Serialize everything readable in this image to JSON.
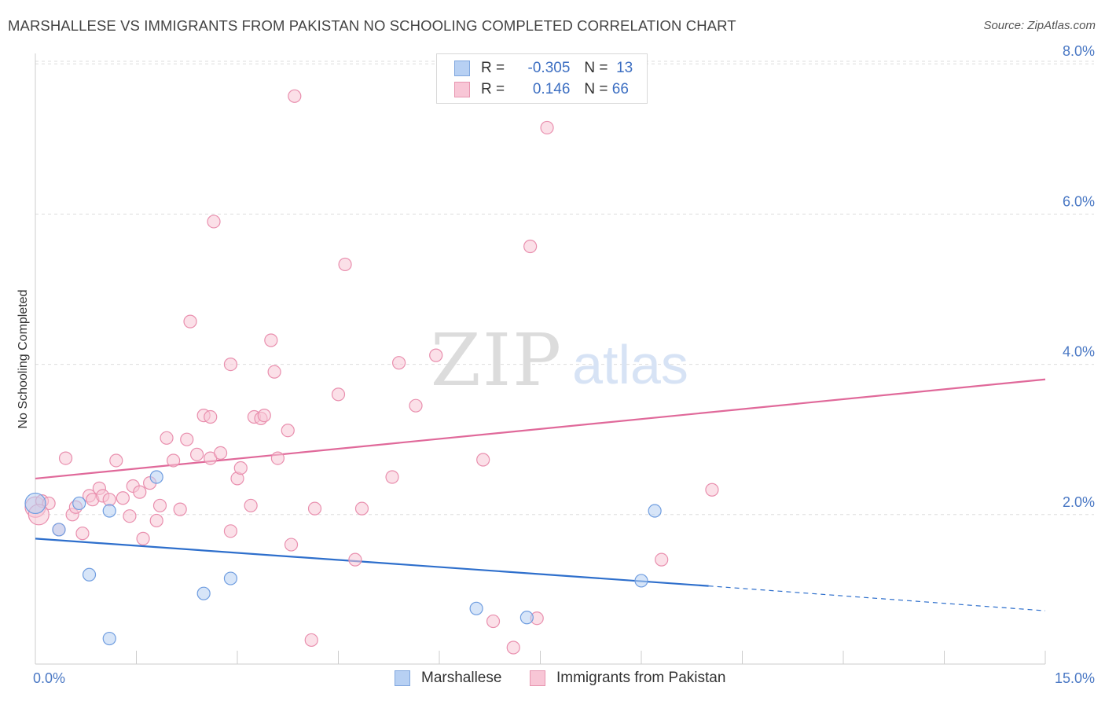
{
  "header": {
    "title": "MARSHALLESE VS IMMIGRANTS FROM PAKISTAN NO SCHOOLING COMPLETED CORRELATION CHART",
    "source": "Source: ZipAtlas.com"
  },
  "watermark": {
    "zip": "ZIP",
    "atlas": "atlas"
  },
  "legend": {
    "rows": [
      {
        "r_label": "R =",
        "r_value": "-0.305",
        "n_label": "N =",
        "n_value": "13",
        "color": "#b7d0f3",
        "border": "#7fa6de"
      },
      {
        "r_label": "R =",
        "r_value": "0.146",
        "n_label": "N =",
        "n_value": "66",
        "color": "#f8c6d6",
        "border": "#e795b0"
      }
    ]
  },
  "chart_data": {
    "type": "scatter",
    "title": "MARSHALLESE VS IMMIGRANTS FROM PAKISTAN NO SCHOOLING COMPLETED CORRELATION CHART",
    "xlabel": "",
    "ylabel": "No Schooling Completed",
    "xlim": [
      0,
      15
    ],
    "ylim": [
      0,
      8
    ],
    "x_tick_labels": [
      "0.0%",
      "15.0%"
    ],
    "y_ticks": [
      2,
      4,
      6,
      8
    ],
    "y_tick_labels": [
      "2.0%",
      "4.0%",
      "6.0%",
      "8.0%"
    ],
    "grid": true,
    "legend_position": "top-center",
    "series": [
      {
        "name": "Marshallese",
        "color": "#6f9de0",
        "fill": "#b7d0f3",
        "points": [
          [
            0.0,
            2.15
          ],
          [
            0.35,
            1.8
          ],
          [
            0.65,
            2.15
          ],
          [
            0.8,
            1.2
          ],
          [
            1.1,
            0.35
          ],
          [
            1.1,
            2.05
          ],
          [
            1.8,
            2.5
          ],
          [
            2.5,
            0.95
          ],
          [
            2.9,
            1.15
          ],
          [
            6.55,
            0.75
          ],
          [
            7.3,
            0.63
          ],
          [
            9.0,
            1.12
          ],
          [
            9.2,
            2.05
          ]
        ],
        "trend": {
          "x0": 0.0,
          "y0": 1.68,
          "x1": 10.0,
          "y1": 1.05,
          "dashed_to_x": 15.0,
          "dashed_to_y": 0.72,
          "color": "#2e6fcc"
        }
      },
      {
        "name": "Immigrants from Pakistan",
        "color": "#e98fae",
        "fill": "#f8c6d6",
        "points": [
          [
            0.0,
            2.1
          ],
          [
            0.1,
            2.18
          ],
          [
            0.2,
            2.15
          ],
          [
            0.35,
            1.8
          ],
          [
            0.45,
            2.75
          ],
          [
            0.55,
            2.0
          ],
          [
            0.6,
            2.1
          ],
          [
            0.7,
            1.75
          ],
          [
            0.8,
            2.25
          ],
          [
            0.85,
            2.2
          ],
          [
            0.95,
            2.35
          ],
          [
            1.0,
            2.25
          ],
          [
            1.1,
            2.2
          ],
          [
            1.2,
            2.72
          ],
          [
            1.3,
            2.22
          ],
          [
            1.4,
            1.98
          ],
          [
            1.45,
            2.38
          ],
          [
            1.55,
            2.3
          ],
          [
            1.6,
            1.68
          ],
          [
            1.7,
            2.42
          ],
          [
            1.8,
            1.92
          ],
          [
            1.85,
            2.12
          ],
          [
            1.95,
            3.02
          ],
          [
            2.05,
            2.72
          ],
          [
            2.15,
            2.07
          ],
          [
            2.25,
            3.0
          ],
          [
            2.3,
            4.57
          ],
          [
            2.4,
            2.8
          ],
          [
            2.5,
            3.32
          ],
          [
            2.6,
            2.75
          ],
          [
            2.6,
            3.3
          ],
          [
            2.65,
            5.9
          ],
          [
            2.75,
            2.82
          ],
          [
            2.9,
            1.78
          ],
          [
            2.9,
            4.0
          ],
          [
            3.0,
            2.48
          ],
          [
            3.05,
            2.62
          ],
          [
            3.2,
            2.12
          ],
          [
            3.25,
            3.3
          ],
          [
            3.35,
            3.28
          ],
          [
            3.4,
            3.32
          ],
          [
            3.5,
            4.32
          ],
          [
            3.55,
            3.9
          ],
          [
            3.6,
            2.75
          ],
          [
            3.75,
            3.12
          ],
          [
            3.8,
            1.6
          ],
          [
            3.85,
            7.57
          ],
          [
            4.1,
            0.33
          ],
          [
            4.15,
            2.08
          ],
          [
            4.5,
            3.6
          ],
          [
            4.6,
            5.33
          ],
          [
            4.75,
            1.4
          ],
          [
            4.85,
            2.08
          ],
          [
            5.3,
            2.5
          ],
          [
            5.4,
            4.02
          ],
          [
            5.65,
            3.45
          ],
          [
            5.95,
            4.12
          ],
          [
            6.65,
            2.73
          ],
          [
            6.8,
            0.58
          ],
          [
            7.1,
            0.23
          ],
          [
            7.35,
            5.57
          ],
          [
            7.45,
            0.62
          ],
          [
            7.6,
            7.15
          ],
          [
            9.3,
            1.4
          ],
          [
            10.05,
            2.33
          ],
          [
            0.05,
            2.0
          ]
        ],
        "trend": {
          "x0": 0.0,
          "y0": 2.48,
          "x1": 15.0,
          "y1": 3.8,
          "color": "#e0699a"
        }
      }
    ]
  }
}
